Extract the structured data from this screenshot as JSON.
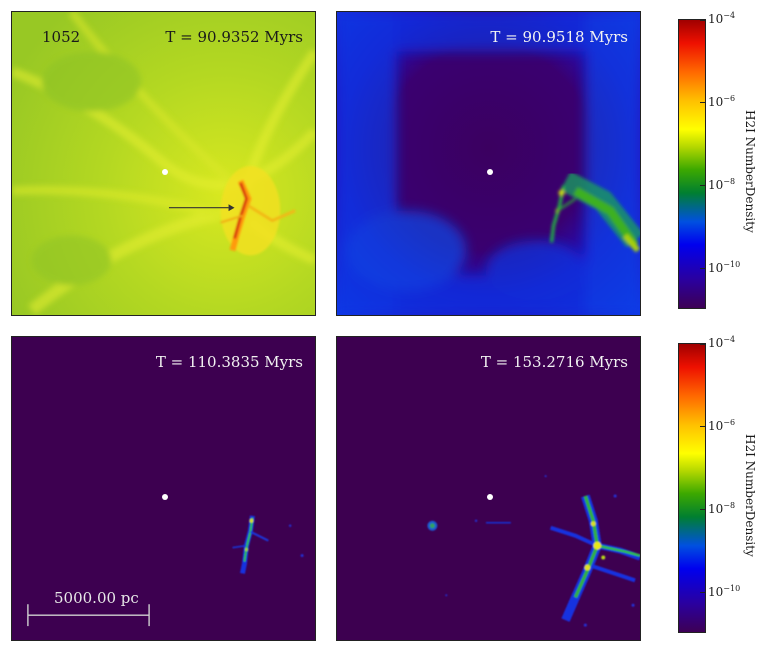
{
  "panels": [
    {
      "time": "T = 90.9352 Myrs",
      "id_label": "1052"
    },
    {
      "time": "T = 90.9518 Myrs"
    },
    {
      "time": "T = 110.3835 Myrs",
      "scalebar": "5000.00 pc"
    },
    {
      "time": "T = 153.2716 Myrs"
    }
  ],
  "colorbar": {
    "label": "H2I NumberDensity",
    "ticks": [
      {
        "base": "10",
        "exp": "−4"
      },
      {
        "base": "10",
        "exp": "−6"
      },
      {
        "base": "10",
        "exp": "−8"
      },
      {
        "base": "10",
        "exp": "−10"
      }
    ]
  },
  "colors": {
    "bg_green": "#a8d422",
    "bg_blue": "#1a1ae0",
    "bg_dark": "#3d0050",
    "hot_red": "#c81e00"
  }
}
